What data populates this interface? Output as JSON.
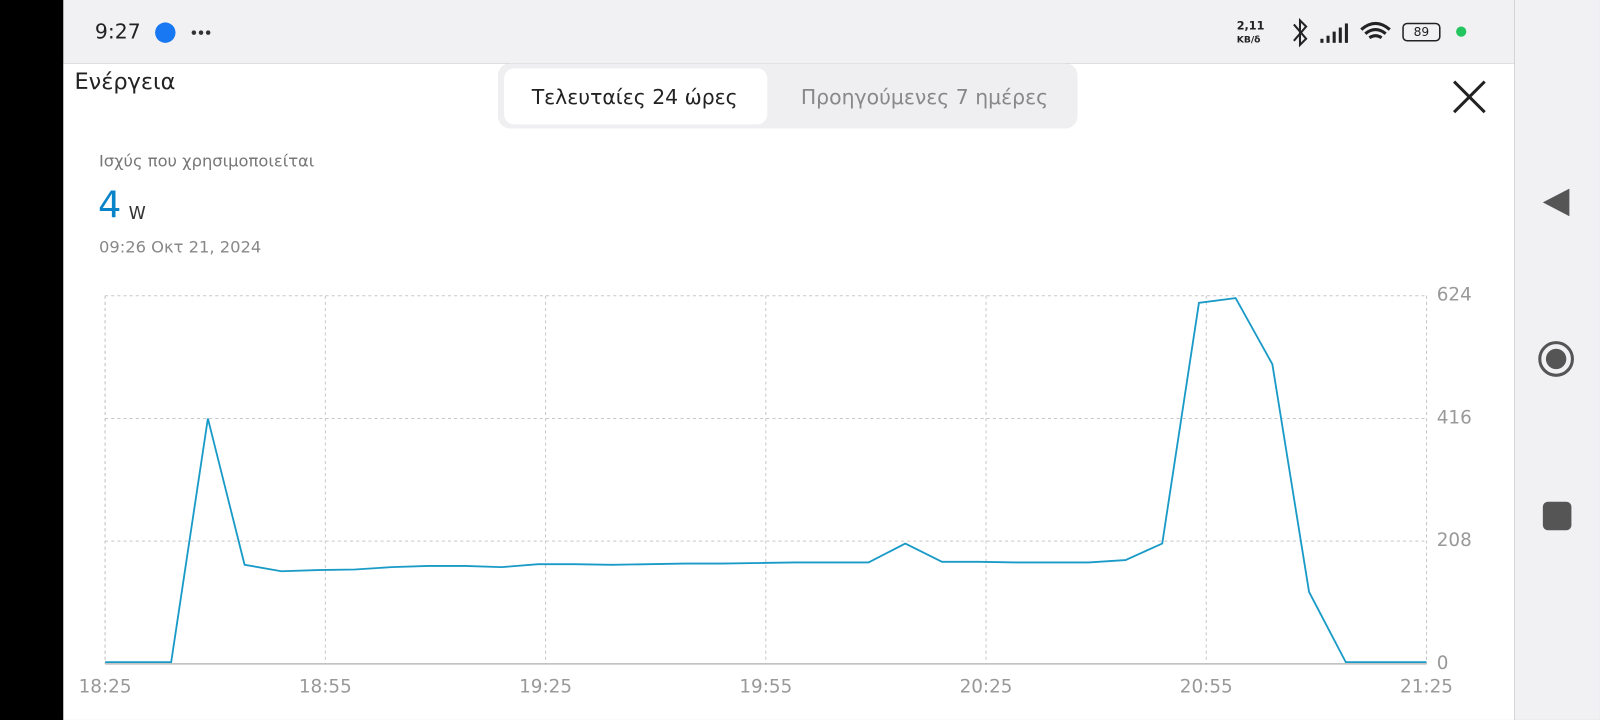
{
  "status_bar": {
    "time": "9:27",
    "data_rate": "2,11",
    "data_rate_unit": "KB/δ",
    "battery": 89
  },
  "header": {
    "title": "Ενέργεια",
    "tabs": [
      "Τελευταίες 24 ώρες",
      "Προηγούμενες 7 ημέρες"
    ]
  },
  "summary": {
    "label": "Ισχύς που χρησιμοποιείται",
    "value": 4,
    "unit": "W",
    "timestamp": "09:26 Οκτ 21, 2024"
  },
  "chart_data": {
    "type": "line",
    "x": [
      "18:25",
      "18:34",
      "18:39",
      "18:44",
      "18:49",
      "18:54",
      "18:59",
      "19:04",
      "19:09",
      "19:14",
      "19:19",
      "19:24",
      "19:29",
      "19:34",
      "19:39",
      "19:44",
      "19:49",
      "19:54",
      "19:59",
      "20:04",
      "20:09",
      "20:14",
      "20:19",
      "20:24",
      "20:29",
      "20:34",
      "20:39",
      "20:44",
      "20:49",
      "20:54",
      "20:59",
      "21:04",
      "21:09",
      "21:14",
      "21:25"
    ],
    "values": [
      3,
      3,
      416,
      168,
      157,
      159,
      160,
      164,
      166,
      166,
      164,
      169,
      169,
      168,
      169,
      170,
      170,
      171,
      172,
      172,
      172,
      204,
      173,
      173,
      172,
      172,
      172,
      176,
      204,
      612,
      620,
      508,
      122,
      3,
      3
    ],
    "color": "#1a9bc7",
    "xlim": [
      "18:25",
      "21:25"
    ],
    "xticks": [
      "18:25",
      "18:55",
      "19:25",
      "19:55",
      "20:25",
      "20:55",
      "21:25"
    ],
    "ylim": [
      0,
      624
    ],
    "yticks": [
      0,
      208,
      416,
      624
    ],
    "grid": true
  }
}
